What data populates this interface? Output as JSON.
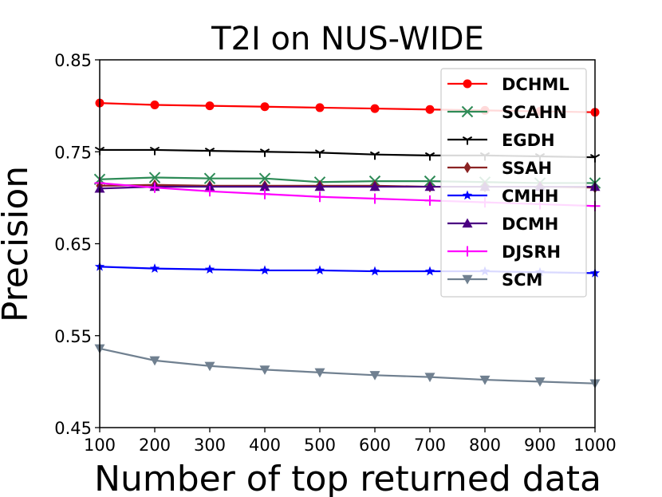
{
  "chart_data": {
    "type": "line",
    "title": "T2I on NUS-WIDE",
    "xlabel": "Number of top returned data",
    "ylabel": "Precision",
    "x": [
      100,
      200,
      300,
      400,
      500,
      600,
      700,
      800,
      900,
      1000
    ],
    "xlim": [
      100,
      1000
    ],
    "ylim": [
      0.45,
      0.85
    ],
    "xticks": [
      "100",
      "200",
      "300",
      "400",
      "500",
      "600",
      "700",
      "800",
      "900",
      "1000"
    ],
    "yticks": [
      "0.45",
      "0.55",
      "0.65",
      "0.75",
      "0.85"
    ],
    "legend_position": "top-right",
    "grid": false,
    "series": [
      {
        "name": "DCHML",
        "color": "#ff0000",
        "marker": "circle",
        "values": [
          0.803,
          0.801,
          0.8,
          0.799,
          0.798,
          0.797,
          0.796,
          0.795,
          0.794,
          0.793
        ]
      },
      {
        "name": "SCAHN",
        "color": "#2e8b57",
        "marker": "x",
        "values": [
          0.72,
          0.722,
          0.721,
          0.721,
          0.717,
          0.718,
          0.718,
          0.717,
          0.716,
          0.716
        ]
      },
      {
        "name": "EGDH",
        "color": "#000000",
        "marker": "tri",
        "values": [
          0.752,
          0.752,
          0.751,
          0.75,
          0.749,
          0.747,
          0.746,
          0.746,
          0.745,
          0.744
        ]
      },
      {
        "name": "SSAH",
        "color": "#8b2323",
        "marker": "diamond",
        "values": [
          0.713,
          0.714,
          0.713,
          0.713,
          0.713,
          0.713,
          0.712,
          0.712,
          0.712,
          0.711
        ]
      },
      {
        "name": "CMHH",
        "color": "#0000ff",
        "marker": "star",
        "values": [
          0.625,
          0.623,
          0.622,
          0.621,
          0.621,
          0.62,
          0.62,
          0.62,
          0.619,
          0.618
        ]
      },
      {
        "name": "DCMH",
        "color": "#4b0082",
        "marker": "triangle-up",
        "values": [
          0.71,
          0.712,
          0.712,
          0.712,
          0.712,
          0.712,
          0.712,
          0.712,
          0.712,
          0.712
        ]
      },
      {
        "name": "DJSRH",
        "color": "#ff00ff",
        "marker": "plus",
        "values": [
          0.716,
          0.711,
          0.707,
          0.704,
          0.701,
          0.699,
          0.697,
          0.695,
          0.693,
          0.691
        ]
      },
      {
        "name": "SCM",
        "color": "#708090",
        "marker": "triangle-down",
        "values": [
          0.536,
          0.523,
          0.517,
          0.513,
          0.51,
          0.507,
          0.505,
          0.502,
          0.5,
          0.498
        ]
      }
    ]
  }
}
